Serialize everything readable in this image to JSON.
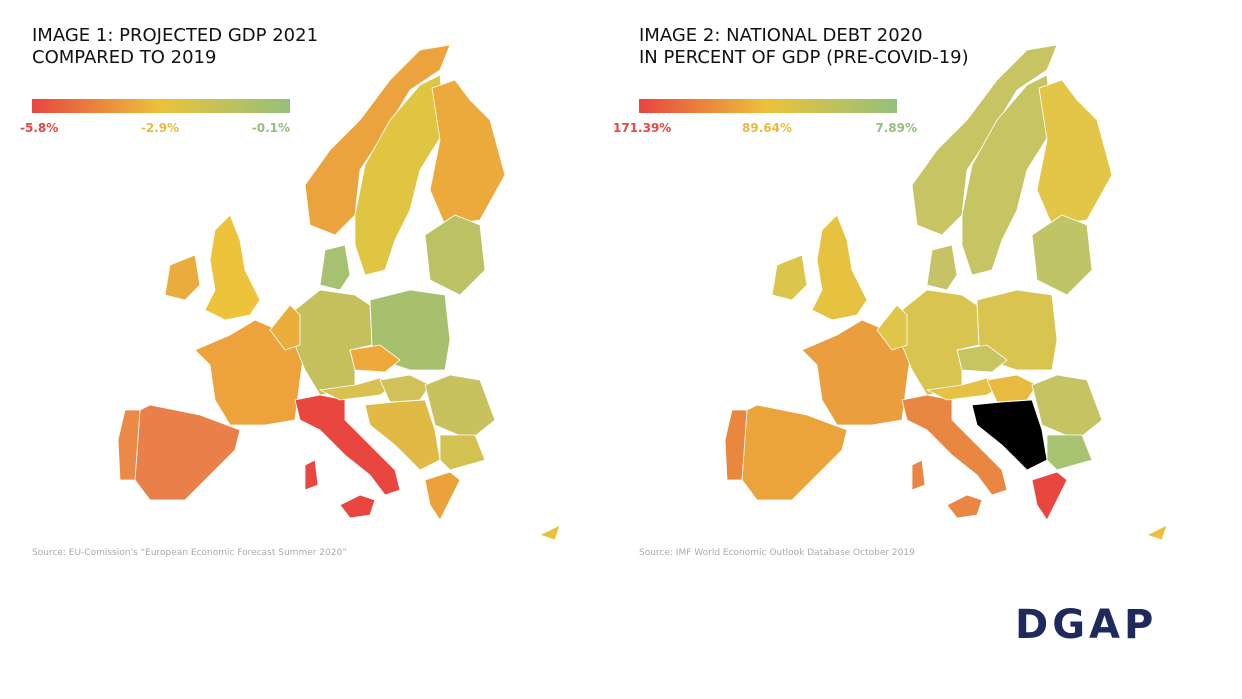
{
  "maps": [
    {
      "title_lines": [
        "IMAGE 1: PROJECTED GDP 2021",
        "COMPARED TO 2019"
      ],
      "legend": [
        "-5.8%",
        "-2.9%",
        "-0.1%"
      ],
      "source": "Source: EU-Comission's “European Economic Forecast Summer 2020”"
    },
    {
      "title_lines": [
        "IMAGE 2: NATIONAL DEBT 2020",
        "IN PERCENT OF GDP  (PRE-COVID-19)"
      ],
      "legend": [
        "171.39%",
        "89.64%",
        "7.89%"
      ],
      "source": "Source: IMF World Economic Outlook Database October 2019"
    }
  ],
  "logo": "DGAP"
}
